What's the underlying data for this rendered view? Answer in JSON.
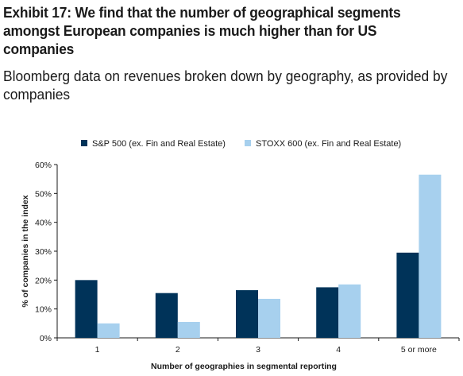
{
  "title": "Exhibit 17: We find that the number of geographical segments amongst European companies is much higher than for US companies",
  "subtitle": "Bloomberg data on revenues broken down by geography, as provided by companies",
  "chart_data": {
    "type": "bar",
    "categories": [
      "1",
      "2",
      "3",
      "4",
      "5 or more"
    ],
    "series": [
      {
        "name": "S&P 500 (ex. Fin and Real Estate)",
        "color": "#003359",
        "values": [
          20,
          15.5,
          16.5,
          17.5,
          29.5
        ]
      },
      {
        "name": "STOXX 600 (ex. Fin and Real Estate)",
        "color": "#a7d0ee",
        "values": [
          5,
          5.5,
          13.5,
          18.5,
          56.5
        ]
      }
    ],
    "xlabel": "Number of geographies in segmental reporting",
    "ylabel": "% of companies in the index",
    "ylim": [
      0,
      60
    ],
    "yticks": [
      "0%",
      "10%",
      "20%",
      "30%",
      "40%",
      "50%",
      "60%"
    ],
    "grid": false,
    "legend": "top"
  }
}
